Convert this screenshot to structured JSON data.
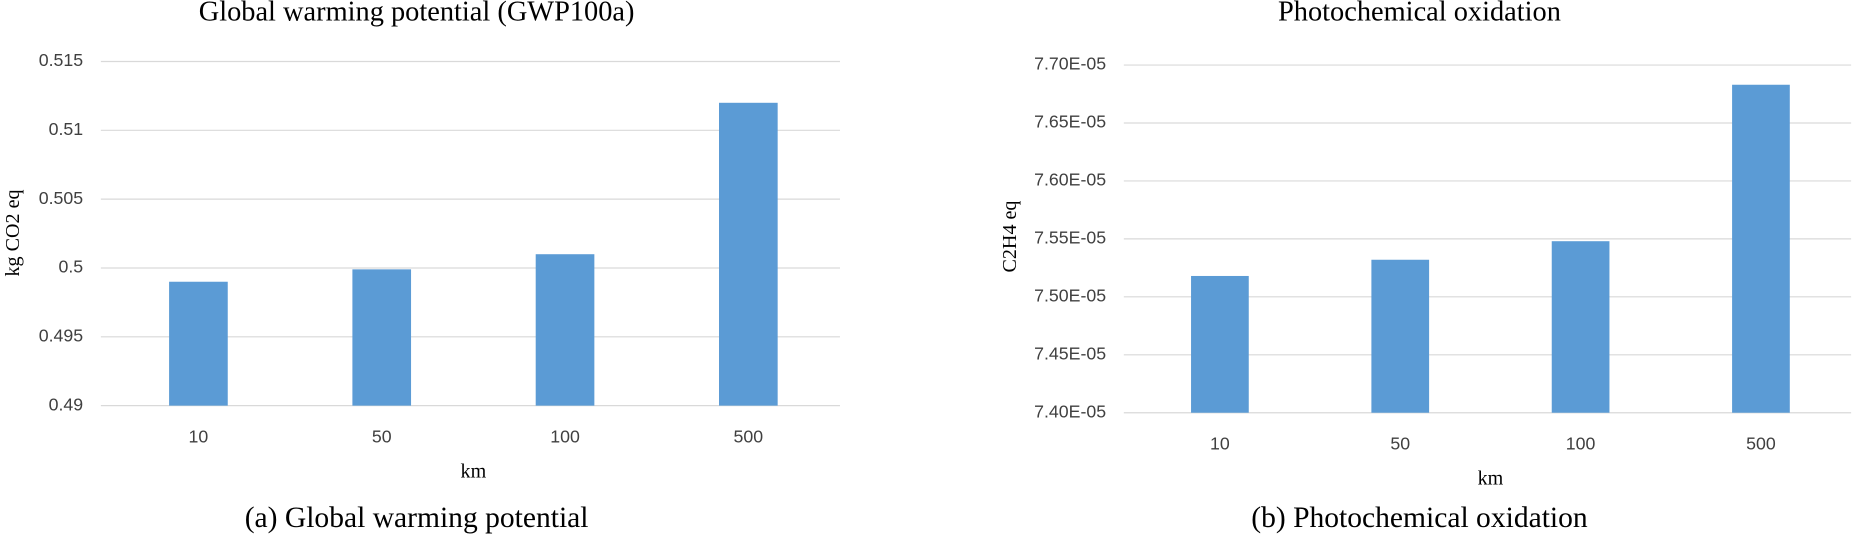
{
  "chart_data": [
    {
      "type": "bar",
      "title": "Global warming potential (GWP100a)",
      "x_label": "km",
      "y_label": "kg CO2 eq",
      "caption": "(a)  Global  warming  potential",
      "categories": [
        "10",
        "50",
        "100",
        "500"
      ],
      "values": [
        0.499,
        0.4999,
        0.501,
        0.512
      ],
      "color": "#5b9bd5",
      "ylim": [
        0.49,
        0.515
      ],
      "yticks": [
        0.49,
        0.495,
        0.5,
        0.505,
        0.51,
        0.515
      ],
      "grid": true
    },
    {
      "type": "bar",
      "title": "Photochemical oxidation",
      "x_label": "km",
      "y_label": "C2H4 eq",
      "caption": "(b)  Photochemical  oxidation",
      "categories": [
        "10",
        "50",
        "100",
        "500"
      ],
      "values": [
        7.518e-05,
        7.532e-05,
        7.548e-05,
        7.683e-05
      ],
      "color": "#5b9bd5",
      "ylim": [
        7.4e-05,
        7.7e-05
      ],
      "yticks": [
        {
          "value": 7.4e-05,
          "label": "7.40E-05"
        },
        {
          "value": 7.45e-05,
          "label": "7.45E-05"
        },
        {
          "value": 7.5e-05,
          "label": "7.50E-05"
        },
        {
          "value": 7.55e-05,
          "label": "7.55E-05"
        },
        {
          "value": 7.6e-05,
          "label": "7.60E-05"
        },
        {
          "value": 7.65e-05,
          "label": "7.65E-05"
        },
        {
          "value": 7.7e-05,
          "label": "7.70E-05"
        }
      ],
      "grid": true
    }
  ]
}
